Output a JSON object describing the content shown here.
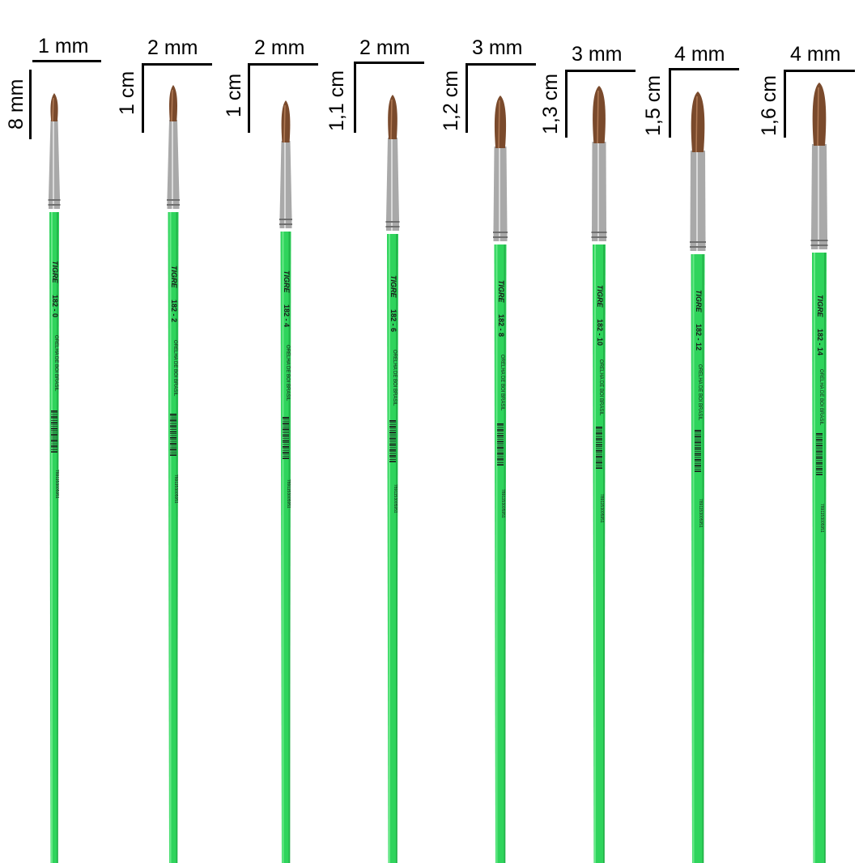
{
  "colors": {
    "handle": "#2fd45c",
    "ferrule": "#a9a9a9",
    "hair": "#7a4a2c",
    "annotation": "#000000"
  },
  "brushes": [
    {
      "width_label": "1 mm",
      "length_label": "8 mm",
      "brand": "TIGRE",
      "code": "182 - 0",
      "description": "ORELHA DE BOI BRASIL",
      "ean": "7891153005951"
    },
    {
      "width_label": "2 mm",
      "length_label": "1 cm",
      "brand": "TIGRE",
      "code": "182 - 2",
      "description": "ORELHA DE BOI BRASIL",
      "ean": "7891153005951"
    },
    {
      "width_label": "2 mm",
      "length_label": "1 cm",
      "brand": "TIGRE",
      "code": "182 - 4",
      "description": "ORELHA DE BOI BRASIL",
      "ean": "7891153005951"
    },
    {
      "width_label": "2 mm",
      "length_label": "1,1 cm",
      "brand": "TIGRE",
      "code": "182 - 6",
      "description": "ORELHA DE BOI BRASIL",
      "ean": "7891153005951"
    },
    {
      "width_label": "3 mm",
      "length_label": "1,2 cm",
      "brand": "TIGRE",
      "code": "182 - 8",
      "description": "ORELHA DE BOI BRASIL",
      "ean": "7891153005951"
    },
    {
      "width_label": "3 mm",
      "length_label": "1,3 cm",
      "brand": "TIGRE",
      "code": "182 - 10",
      "description": "ORELHA DE BOI BRASIL",
      "ean": "7891153005951"
    },
    {
      "width_label": "4 mm",
      "length_label": "1,5 cm",
      "brand": "TIGRE",
      "code": "182 - 12",
      "description": "ORELHA DE BOI BRASIL",
      "ean": "7891153005951"
    },
    {
      "width_label": "4 mm",
      "length_label": "1,6 cm",
      "brand": "TIGRE",
      "code": "182 - 14",
      "description": "ORELHA DE BOI BRASIL",
      "ean": "7891153005951"
    }
  ]
}
